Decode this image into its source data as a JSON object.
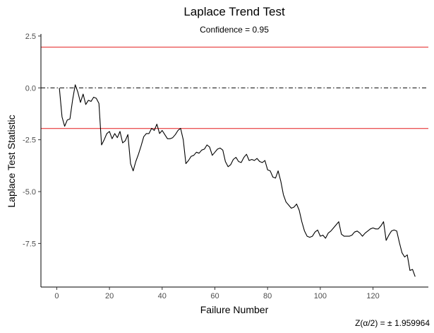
{
  "chart_data": {
    "type": "line",
    "title": "Laplace Trend Test",
    "subtitle": "Confidence = 0.95",
    "xlabel": "Failure Number",
    "ylabel": "Laplace Test Statistic",
    "caption": "Z(α/2) = ±  1.959964",
    "xlim": [
      -6,
      141
    ],
    "ylim": [
      -9.6,
      2.6
    ],
    "x_ticks": [
      0,
      20,
      40,
      60,
      80,
      100,
      120
    ],
    "y_ticks": [
      2.5,
      0.0,
      -2.5,
      -5.0,
      -7.5
    ],
    "y_tick_labels": [
      "2.5",
      "0.0",
      "-2.5",
      "-5.0",
      "-7.5"
    ],
    "grid": false,
    "reference_lines": [
      {
        "y": 1.959964,
        "style": "solid",
        "color": "#e41a1c"
      },
      {
        "y": -1.959964,
        "style": "solid",
        "color": "#e41a1c"
      },
      {
        "y": 0,
        "style": "dotdash",
        "color": "#000000"
      }
    ],
    "series": [
      {
        "color": "#000000",
        "x": [
          1,
          2,
          3,
          4,
          5,
          6,
          7,
          8,
          9,
          10,
          11,
          12,
          13,
          14,
          15,
          16,
          17,
          18,
          19,
          20,
          21,
          22,
          23,
          24,
          25,
          26,
          27,
          28,
          29,
          30,
          31,
          32,
          33,
          34,
          35,
          36,
          37,
          38,
          39,
          40,
          41,
          42,
          43,
          44,
          45,
          46,
          47,
          48,
          49,
          50,
          51,
          52,
          53,
          54,
          55,
          56,
          57,
          58,
          59,
          60,
          61,
          62,
          63,
          64,
          65,
          66,
          67,
          68,
          69,
          70,
          71,
          72,
          73,
          74,
          75,
          76,
          77,
          78,
          79,
          80,
          81,
          82,
          83,
          84,
          85,
          86,
          87,
          88,
          89,
          90,
          91,
          92,
          93,
          94,
          95,
          96,
          97,
          98,
          99,
          100,
          101,
          102,
          103,
          104,
          105,
          106,
          107,
          108,
          109,
          110,
          111,
          112,
          113,
          114,
          115,
          116,
          117,
          118,
          119,
          120,
          121,
          122,
          123,
          124,
          125,
          126,
          127,
          128,
          129,
          130,
          131,
          132,
          133,
          134,
          135,
          136
        ],
        "values": [
          0.0,
          -1.4,
          -1.85,
          -1.55,
          -1.5,
          -0.6,
          0.15,
          -0.2,
          -0.7,
          -0.3,
          -0.8,
          -0.6,
          -0.65,
          -0.45,
          -0.5,
          -0.75,
          -2.75,
          -2.5,
          -2.2,
          -2.1,
          -2.45,
          -2.2,
          -2.4,
          -2.1,
          -2.65,
          -2.55,
          -2.25,
          -3.65,
          -4.0,
          -3.55,
          -3.2,
          -2.8,
          -2.35,
          -2.2,
          -2.2,
          -1.95,
          -2.05,
          -1.75,
          -2.2,
          -2.05,
          -2.25,
          -2.45,
          -2.45,
          -2.4,
          -2.25,
          -2.05,
          -1.95,
          -2.5,
          -3.65,
          -3.5,
          -3.3,
          -3.25,
          -3.1,
          -3.15,
          -3.0,
          -2.95,
          -2.75,
          -2.85,
          -3.25,
          -3.1,
          -2.95,
          -2.9,
          -3.0,
          -3.55,
          -3.8,
          -3.7,
          -3.45,
          -3.35,
          -3.55,
          -3.6,
          -3.35,
          -3.2,
          -3.5,
          -3.45,
          -3.5,
          -3.4,
          -3.55,
          -3.6,
          -3.5,
          -3.95,
          -4.0,
          -4.3,
          -4.35,
          -4.0,
          -4.5,
          -5.15,
          -5.5,
          -5.65,
          -5.8,
          -5.75,
          -5.6,
          -5.9,
          -6.45,
          -6.9,
          -7.15,
          -7.2,
          -7.15,
          -6.95,
          -6.85,
          -7.15,
          -7.1,
          -7.25,
          -7.0,
          -6.9,
          -6.75,
          -6.6,
          -6.45,
          -7.05,
          -7.15,
          -7.15,
          -7.15,
          -7.1,
          -6.95,
          -6.9,
          -7.0,
          -7.15,
          -7.0,
          -6.9,
          -6.8,
          -6.75,
          -6.8,
          -6.8,
          -6.65,
          -6.45,
          -7.35,
          -7.1,
          -6.9,
          -6.85,
          -6.9,
          -7.45,
          -7.95,
          -8.15,
          -8.05,
          -8.8,
          -8.75,
          -9.1
        ]
      }
    ]
  }
}
